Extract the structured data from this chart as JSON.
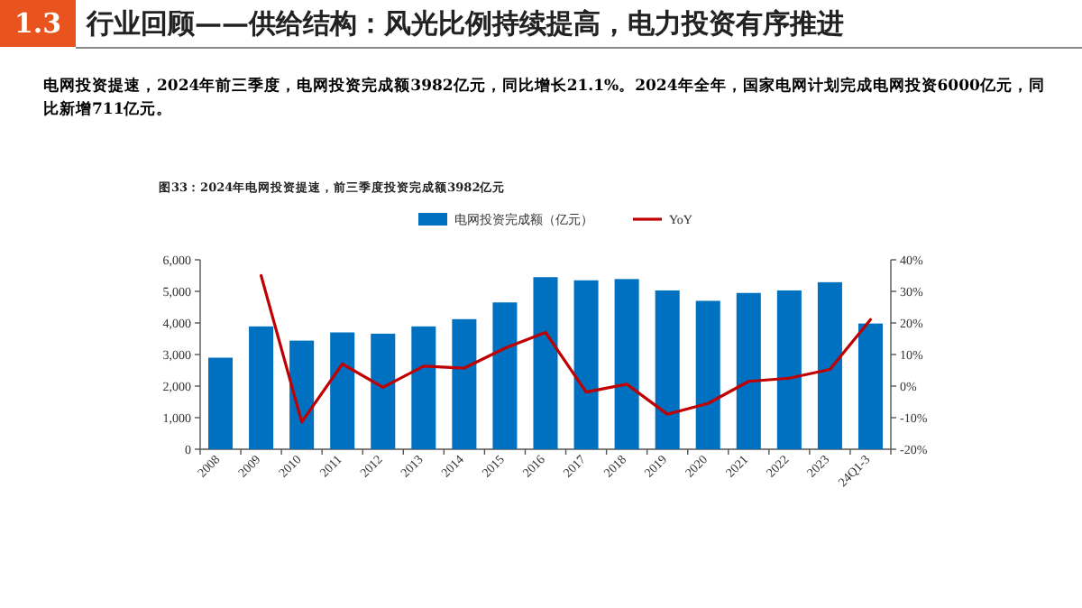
{
  "chart_data": {
    "type": "bar",
    "title": "图33：2024年电网投资提速，前三季度投资完成额3982亿元",
    "annotations": [
      "1.3",
      "行业回顾——供给结构：风光比例持续提高，电力投资有序推进",
      "电网投资提速，2024年前三季度，电网投资完成额3982亿元，同比增长21.1%。2024年全年，国家电网计划完成电网投资6000亿元，同比新增711亿元。"
    ],
    "categories": [
      "2008",
      "2009",
      "2010",
      "2011",
      "2012",
      "2013",
      "2014",
      "2015",
      "2016",
      "2017",
      "2018",
      "2019",
      "2020",
      "2021",
      "2022",
      "2023",
      "24Q1-3"
    ],
    "series": [
      {
        "name": "电网投资完成额（亿元）",
        "color": "#0070c0",
        "values": [
          2900,
          3890,
          3440,
          3700,
          3660,
          3890,
          4120,
          4650,
          5450,
          5350,
          5390,
          5030,
          4700,
          4950,
          5030,
          5290,
          3982
        ]
      },
      {
        "name": "YoY",
        "type": "line",
        "axis": "y2",
        "color": "#c00000",
        "values": [
          null,
          35,
          -11.4,
          7,
          -0.4,
          6.3,
          5.7,
          12,
          17,
          -1.9,
          0.6,
          -8.9,
          -5.5,
          1.5,
          2.5,
          5.3,
          21.1
        ]
      }
    ],
    "ylim": [
      0,
      6000
    ],
    "yticks": [
      0,
      {
        "value": 1000,
        "label": "1,000"
      },
      {
        "value": 2000,
        "label": "2,000"
      },
      {
        "value": 3000,
        "label": "3,000"
      },
      {
        "value": 4000,
        "label": "4,000"
      },
      {
        "value": 5000,
        "label": "5,000"
      },
      {
        "value": 6000,
        "label": "6,000"
      }
    ],
    "y2lim": [
      -20,
      40
    ],
    "y2ticks": [
      {
        "value": -20,
        "label": "-20%"
      },
      {
        "value": -10,
        "label": "-10%"
      },
      {
        "value": 0,
        "label": "0%"
      },
      {
        "value": 10,
        "label": "10%"
      },
      {
        "value": 20,
        "label": "20%"
      },
      {
        "value": 30,
        "label": "30%"
      },
      {
        "value": 40,
        "label": "40%"
      }
    ],
    "legend": "top",
    "marker": "none",
    "line_style": "solid"
  }
}
